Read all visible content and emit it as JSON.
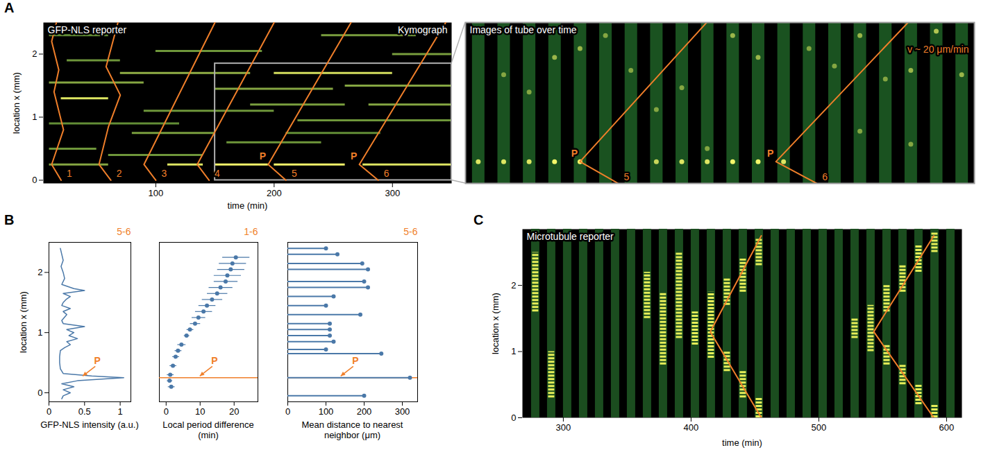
{
  "chart_data": [
    {
      "panel": "A",
      "type": "kymograph",
      "title": "GFP-NLS reporter",
      "subtitle": "Kymograph",
      "xlabel": "time (min)",
      "ylabel": "location x (mm)",
      "xlim": [
        5,
        350
      ],
      "xticks": [
        100,
        200,
        300
      ],
      "ylim": [
        -0.05,
        2.5
      ],
      "yticks": [
        0,
        1,
        2
      ],
      "streaks": [
        {
          "start": 10,
          "end": 60,
          "location": 0.25,
          "intensity": 0.5
        },
        {
          "start": 10,
          "end": 50,
          "location": 0.5,
          "intensity": 0.4
        },
        {
          "start": 10,
          "end": 120,
          "location": 0.9,
          "intensity": 0.35
        },
        {
          "start": 20,
          "end": 60,
          "location": 1.3,
          "intensity": 0.9
        },
        {
          "start": 10,
          "end": 90,
          "location": 1.55,
          "intensity": 0.5
        },
        {
          "start": 25,
          "end": 70,
          "location": 1.9,
          "intensity": 0.4
        },
        {
          "start": 10,
          "end": 60,
          "location": 2.3,
          "intensity": 0.35
        },
        {
          "start": 60,
          "end": 140,
          "location": 0.4,
          "intensity": 0.4
        },
        {
          "start": 80,
          "end": 150,
          "location": 0.75,
          "intensity": 0.45
        },
        {
          "start": 90,
          "end": 200,
          "location": 1.1,
          "intensity": 0.4
        },
        {
          "start": 70,
          "end": 180,
          "location": 1.7,
          "intensity": 0.55
        },
        {
          "start": 100,
          "end": 190,
          "location": 2.05,
          "intensity": 0.4
        },
        {
          "start": 110,
          "end": 140,
          "location": 0.25,
          "intensity": 0.9
        },
        {
          "start": 150,
          "end": 195,
          "location": 0.25,
          "intensity": 1
        },
        {
          "start": 200,
          "end": 260,
          "location": 0.25,
          "intensity": 1
        },
        {
          "start": 275,
          "end": 350,
          "location": 0.25,
          "intensity": 0.9
        },
        {
          "start": 150,
          "end": 250,
          "location": 1.45,
          "intensity": 0.5
        },
        {
          "start": 200,
          "end": 300,
          "location": 1.7,
          "intensity": 0.85
        },
        {
          "start": 180,
          "end": 260,
          "location": 1.2,
          "intensity": 0.45
        },
        {
          "start": 220,
          "end": 350,
          "location": 0.95,
          "intensity": 0.4
        },
        {
          "start": 260,
          "end": 350,
          "location": 1.5,
          "intensity": 0.5
        },
        {
          "start": 300,
          "end": 350,
          "location": 2,
          "intensity": 0.45
        },
        {
          "start": 240,
          "end": 320,
          "location": 2.3,
          "intensity": 0.45
        },
        {
          "start": 160,
          "end": 240,
          "location": 0.6,
          "intensity": 0.4
        },
        {
          "start": 280,
          "end": 350,
          "location": 1.2,
          "intensity": 0.5
        },
        {
          "start": 210,
          "end": 290,
          "location": 0.75,
          "intensity": 0.35
        }
      ],
      "waves": [
        {
          "label": "1",
          "points": [
            [
              20,
              0
            ],
            [
              12,
              0.25
            ],
            [
              22,
              0.8
            ],
            [
              14,
              1.4
            ],
            [
              18,
              1.75
            ],
            [
              12,
              2.2
            ],
            [
              16,
              2.5
            ]
          ]
        },
        {
          "label": "2",
          "points": [
            [
              62,
              0
            ],
            [
              52,
              0.25
            ],
            [
              60,
              0.85
            ],
            [
              70,
              1.35
            ],
            [
              58,
              1.8
            ],
            [
              68,
              2.5
            ]
          ]
        },
        {
          "label": "3",
          "points": [
            [
              100,
              0
            ],
            [
              90,
              0.25
            ],
            [
              150,
              2.5
            ]
          ]
        },
        {
          "label": "4",
          "points": [
            [
              145,
              0
            ],
            [
              135,
              0.25
            ],
            [
              200,
              2.5
            ]
          ]
        },
        {
          "label": "5",
          "points": [
            [
              210,
              0
            ],
            [
              195,
              0.25
            ],
            [
              265,
              2.5
            ]
          ]
        },
        {
          "label": "6",
          "points": [
            [
              288,
              0
            ],
            [
              272,
              0.25
            ],
            [
              345,
              2.5
            ]
          ]
        }
      ],
      "pacemakers": [
        {
          "time": 195,
          "location": 0.25
        },
        {
          "time": 272,
          "location": 0.25
        }
      ],
      "pacemaker_label": "P",
      "zoom_box": {
        "xlim": [
          150,
          350
        ],
        "ylim": [
          0,
          1.85
        ]
      }
    },
    {
      "type": "image_series",
      "title": "Images of tube over time",
      "annotation": "v ~ 20 μm/min",
      "xlim": [
        150,
        350
      ],
      "ylim": [
        0,
        1.85
      ],
      "tick_labels": false,
      "frames": [
        155,
        165,
        175,
        185,
        195,
        205,
        215,
        225,
        235,
        245,
        255,
        265,
        275,
        285,
        295,
        305,
        315,
        325,
        335,
        345
      ],
      "spots": [
        [
          155,
          0.25,
          0.9
        ],
        [
          165,
          0.25,
          0.9
        ],
        [
          175,
          0.25,
          0.9
        ],
        [
          185,
          0.25,
          1
        ],
        [
          195,
          0.25,
          1
        ],
        [
          225,
          0.25,
          0.8
        ],
        [
          235,
          0.25,
          0.9
        ],
        [
          245,
          0.25,
          0.9
        ],
        [
          255,
          0.25,
          1
        ],
        [
          265,
          0.25,
          1
        ],
        [
          275,
          0.25,
          0.9
        ],
        [
          165,
          1.25,
          0.5
        ],
        [
          175,
          1.05,
          0.5
        ],
        [
          185,
          1.45,
          0.6
        ],
        [
          195,
          1.55,
          0.6
        ],
        [
          205,
          1.7,
          0.5
        ],
        [
          215,
          1.3,
          0.5
        ],
        [
          225,
          0.85,
          0.5
        ],
        [
          235,
          1.1,
          0.5
        ],
        [
          245,
          0.4,
          0.5
        ],
        [
          255,
          1.7,
          0.6
        ],
        [
          265,
          1.45,
          0.6
        ],
        [
          285,
          1.55,
          0.5
        ],
        [
          295,
          1.35,
          0.5
        ],
        [
          305,
          1.7,
          0.6
        ],
        [
          315,
          1.2,
          0.5
        ],
        [
          325,
          1.3,
          0.6
        ],
        [
          335,
          1.75,
          0.7
        ],
        [
          345,
          1.25,
          0.6
        ],
        [
          305,
          0.6,
          0.5
        ],
        [
          325,
          0.45,
          0.5
        ]
      ],
      "waves": [
        {
          "label": "5",
          "points": [
            [
              210,
              0
            ],
            [
              195,
              0.25
            ],
            [
              265,
              2.5
            ]
          ]
        },
        {
          "label": "6",
          "points": [
            [
              288,
              0
            ],
            [
              272,
              0.25
            ],
            [
              345,
              2.5
            ]
          ]
        }
      ],
      "pacemakers": [
        {
          "time": 195,
          "location": 0.25
        },
        {
          "time": 272,
          "location": 0.25
        }
      ],
      "pacemaker_label": "P"
    },
    {
      "panel": "B",
      "type": "line",
      "title": "5-6",
      "xlabel": "GFP-NLS intensity (a.u.)",
      "ylabel": "location x (mm)",
      "color": "#4a78a8",
      "xlim": [
        0,
        1.15
      ],
      "xticks": [
        0,
        0.5,
        1
      ],
      "ylim": [
        -0.15,
        2.5
      ],
      "yticks": [
        0,
        1,
        2
      ],
      "profile": {
        "location": [
          -0.1,
          -0.05,
          0,
          0.05,
          0.1,
          0.15,
          0.2,
          0.25,
          0.28,
          0.32,
          0.4,
          0.5,
          0.6,
          0.7,
          0.75,
          0.8,
          0.85,
          0.9,
          0.95,
          1,
          1.05,
          1.1,
          1.15,
          1.2,
          1.3,
          1.35,
          1.4,
          1.45,
          1.5,
          1.55,
          1.6,
          1.65,
          1.7,
          1.73,
          1.8,
          1.9,
          2,
          2.1,
          2.2,
          2.3,
          2.4
        ],
        "intensity": [
          0.18,
          0.2,
          0.3,
          0.2,
          0.35,
          0.18,
          0.4,
          1.05,
          0.6,
          0.2,
          0.16,
          0.15,
          0.15,
          0.16,
          0.22,
          0.3,
          0.25,
          0.4,
          0.28,
          0.35,
          0.25,
          0.5,
          0.2,
          0.18,
          0.25,
          0.2,
          0.3,
          0.18,
          0.2,
          0.24,
          0.3,
          0.2,
          0.5,
          0.35,
          0.18,
          0.22,
          0.2,
          0.17,
          0.2,
          0.18,
          0.16
        ]
      },
      "pacemakers": [
        {
          "location": 0.25
        }
      ],
      "pacemaker_label": "P"
    },
    {
      "type": "scatter",
      "title": "1-6",
      "xlabel": "Local period difference (min)",
      "color": "#4a78a8",
      "xlim": [
        -2,
        27
      ],
      "xticks": [
        0,
        10,
        20
      ],
      "ylim": [
        -0.15,
        2.5
      ],
      "tick_labels": "x",
      "points": {
        "location": [
          0.1,
          0.2,
          0.3,
          0.45,
          0.6,
          0.7,
          0.8,
          0.95,
          1.05,
          1.15,
          1.25,
          1.35,
          1.45,
          1.55,
          1.65,
          1.75,
          1.85,
          1.95,
          2.05,
          2.15,
          2.25
        ],
        "value": [
          1.5,
          1,
          1.2,
          2,
          2.8,
          3.5,
          4.5,
          6,
          7,
          8.5,
          9.5,
          11,
          12,
          13.5,
          15,
          16,
          17.5,
          18,
          19,
          19.5,
          20.5
        ],
        "error": [
          1,
          0.8,
          1,
          1,
          1,
          1,
          1.2,
          0.8,
          1,
          1.5,
          2,
          2.5,
          2.5,
          3,
          3,
          3.5,
          3.5,
          4,
          4,
          4,
          4
        ]
      },
      "pacemakers": [
        {
          "location": 0.25
        }
      ],
      "pacemaker_label": "P"
    },
    {
      "type": "lollipop",
      "title": "5-6",
      "xlabel": "Mean distance to nearest neighbor (μm)",
      "color": "#4a78a8",
      "xlim": [
        0,
        340
      ],
      "xticks": [
        0,
        100,
        200,
        300
      ],
      "ylim": [
        -0.15,
        2.5
      ],
      "tick_labels": "x",
      "points": {
        "location": [
          -0.05,
          0.25,
          0.65,
          0.72,
          0.85,
          0.95,
          1.05,
          1.15,
          1.3,
          1.45,
          1.6,
          1.75,
          1.85,
          2.05,
          2.15,
          2.3,
          2.4
        ],
        "value": [
          200,
          320,
          245,
          100,
          120,
          110,
          110,
          110,
          190,
          100,
          120,
          210,
          200,
          210,
          195,
          130,
          100
        ]
      },
      "pacemakers": [
        {
          "location": 0.25
        }
      ],
      "pacemaker_label": "P"
    },
    {
      "panel": "C",
      "type": "kymograph",
      "title": "Microtubule reporter",
      "xlabel": "time (min)",
      "ylabel": "location x (mm)",
      "xlim": [
        268,
        612
      ],
      "xticks": [
        300,
        400,
        500,
        600
      ],
      "ylim": [
        0,
        2.85
      ],
      "yticks": [
        0,
        1,
        2
      ],
      "frames": [
        278,
        290.5,
        303,
        315.5,
        328,
        340.5,
        353,
        365.5,
        378,
        390.5,
        403,
        415.5,
        428,
        440.5,
        453,
        465.5,
        478,
        490.5,
        503,
        515.5,
        528,
        540.5,
        553,
        565.5,
        578,
        590.5,
        603
      ],
      "signal": [
        {
          "time": 278,
          "from": 1.6,
          "to": 2.5
        },
        {
          "time": 290.5,
          "from": 0.3,
          "to": 1
        },
        {
          "time": 365.5,
          "from": 1.5,
          "to": 2.2
        },
        {
          "time": 378,
          "from": 0.8,
          "to": 1.9
        },
        {
          "time": 390.5,
          "from": 1.2,
          "to": 2.5
        },
        {
          "time": 403,
          "from": 1.1,
          "to": 1.6
        },
        {
          "time": 415.5,
          "from": 0.9,
          "to": 1.9
        },
        {
          "time": 428,
          "from": 0.7,
          "to": 1
        },
        {
          "time": 428,
          "from": 1.7,
          "to": 2.1
        },
        {
          "time": 440.5,
          "from": 0.3,
          "to": 0.7
        },
        {
          "time": 440.5,
          "from": 1.9,
          "to": 2.4
        },
        {
          "time": 453,
          "from": 0,
          "to": 0.3
        },
        {
          "time": 453,
          "from": 2.3,
          "to": 2.7
        },
        {
          "time": 528,
          "from": 1.2,
          "to": 1.5
        },
        {
          "time": 540.5,
          "from": 1,
          "to": 1.7
        },
        {
          "time": 553,
          "from": 0.8,
          "to": 1.1
        },
        {
          "time": 553,
          "from": 1.6,
          "to": 2
        },
        {
          "time": 565.5,
          "from": 0.5,
          "to": 0.8
        },
        {
          "time": 565.5,
          "from": 1.9,
          "to": 2.3
        },
        {
          "time": 578,
          "from": 0.2,
          "to": 0.5
        },
        {
          "time": 578,
          "from": 2.2,
          "to": 2.6
        },
        {
          "time": 590.5,
          "from": 0,
          "to": 0.2
        },
        {
          "time": 590.5,
          "from": 2.5,
          "to": 2.8
        }
      ],
      "waves": [
        {
          "points": [
            [
              455,
              0
            ],
            [
              415,
              1.3
            ],
            [
              455,
              2.75
            ]
          ]
        },
        {
          "points": [
            [
              590,
              0
            ],
            [
              543,
              1.3
            ],
            [
              590,
              2.75
            ]
          ]
        }
      ]
    }
  ]
}
